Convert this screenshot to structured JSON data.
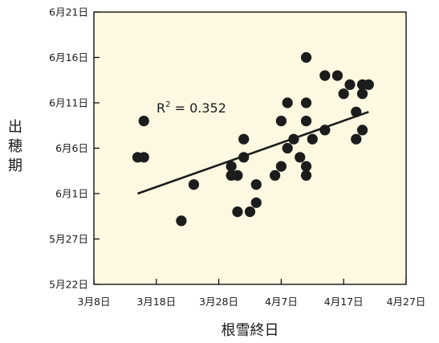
{
  "chart_data": {
    "type": "scatter",
    "xlabel": "根雪終日",
    "ylabel": "出穂期",
    "x_ticks": [
      "3月8日",
      "3月18日",
      "3月28日",
      "4月7日",
      "4月17日",
      "4月27日"
    ],
    "y_ticks": [
      "5月22日",
      "5月27日",
      "6月1日",
      "6月6日",
      "6月11日",
      "6月16日",
      "6月21日"
    ],
    "xlim": [
      "3月8日",
      "4月27日"
    ],
    "ylim": [
      "5月22日",
      "6月21日"
    ],
    "grid": false,
    "annotation": "R² = 0.352",
    "colors": {
      "plot_background": "#fdf8e1",
      "marker": "#1c1c1c",
      "trend_line": "#1c1c1c"
    },
    "points": [
      {
        "x": "3月15日",
        "y": "6月5日"
      },
      {
        "x": "3月16日",
        "y": "6月5日"
      },
      {
        "x": "3月16日",
        "y": "6月9日"
      },
      {
        "x": "3月24日",
        "y": "6月2日"
      },
      {
        "x": "3月22日",
        "y": "5月29日"
      },
      {
        "x": "3月30日",
        "y": "6月3日"
      },
      {
        "x": "3月30日",
        "y": "6月4日"
      },
      {
        "x": "3月31日",
        "y": "6月3日"
      },
      {
        "x": "3月31日",
        "y": "5月30日"
      },
      {
        "x": "4月1日",
        "y": "6月5日"
      },
      {
        "x": "4月1日",
        "y": "6月7日"
      },
      {
        "x": "4月2日",
        "y": "5月30日"
      },
      {
        "x": "4月3日",
        "y": "5月31日"
      },
      {
        "x": "4月3日",
        "y": "6月2日"
      },
      {
        "x": "4月6日",
        "y": "6月3日"
      },
      {
        "x": "4月7日",
        "y": "6月4日"
      },
      {
        "x": "4月7日",
        "y": "6月9日"
      },
      {
        "x": "4月8日",
        "y": "6月6日"
      },
      {
        "x": "4月8日",
        "y": "6月11日"
      },
      {
        "x": "4月9日",
        "y": "6月7日"
      },
      {
        "x": "4月10日",
        "y": "6月5日"
      },
      {
        "x": "4月11日",
        "y": "6月3日"
      },
      {
        "x": "4月11日",
        "y": "6月4日"
      },
      {
        "x": "4月11日",
        "y": "6月9日"
      },
      {
        "x": "4月11日",
        "y": "6月11日"
      },
      {
        "x": "4月11日",
        "y": "6月16日"
      },
      {
        "x": "4月12日",
        "y": "6月7日"
      },
      {
        "x": "4月14日",
        "y": "6月8日"
      },
      {
        "x": "4月14日",
        "y": "6月14日"
      },
      {
        "x": "4月16日",
        "y": "6月14日"
      },
      {
        "x": "4月17日",
        "y": "6月12日"
      },
      {
        "x": "4月18日",
        "y": "6月13日"
      },
      {
        "x": "4月19日",
        "y": "6月7日"
      },
      {
        "x": "4月19日",
        "y": "6月10日"
      },
      {
        "x": "4月20日",
        "y": "6月8日"
      },
      {
        "x": "4月20日",
        "y": "6月12日"
      },
      {
        "x": "4月20日",
        "y": "6月13日"
      },
      {
        "x": "4月21日",
        "y": "6月13日"
      }
    ],
    "trend_line": [
      {
        "x": "3月15日",
        "y": "6月1日"
      },
      {
        "x": "4月21日",
        "y": "6月10日"
      }
    ]
  }
}
